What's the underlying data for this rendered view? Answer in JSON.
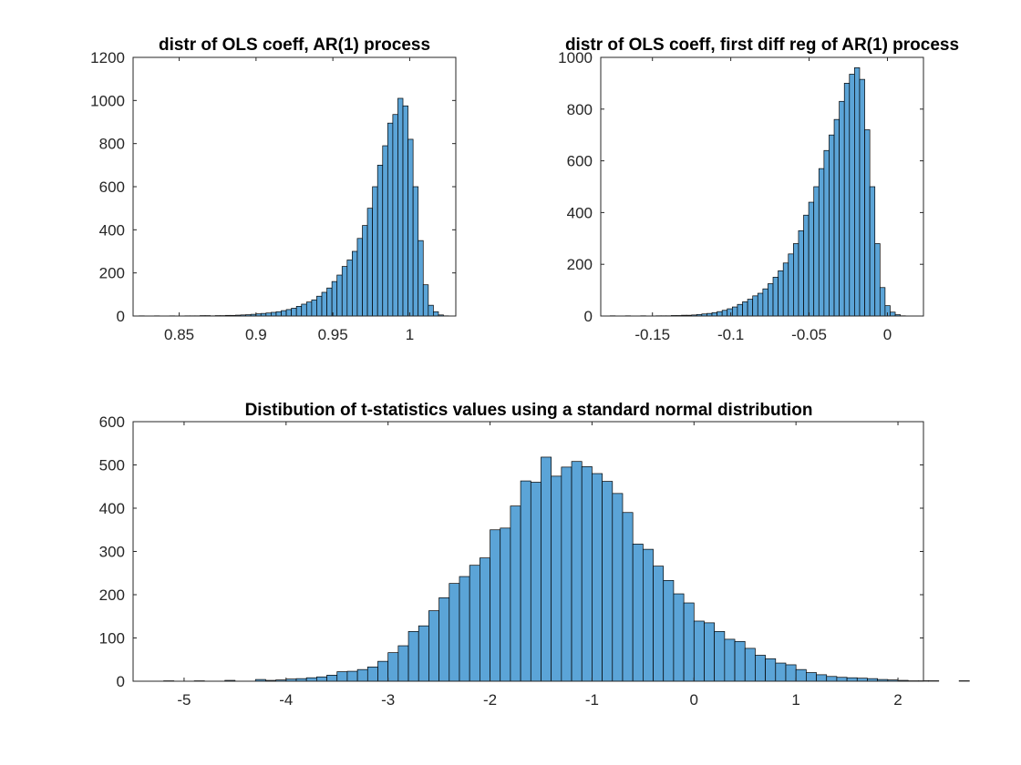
{
  "colors": {
    "bar_fill": "#5ba4d7",
    "bar_edge": "#000000",
    "axis": "#262626",
    "background": "#ffffff"
  },
  "chart_data": [
    {
      "type": "bar",
      "title": "distr of OLS coeff, AR(1) process",
      "xlabel": "",
      "ylabel": "",
      "xlim": [
        0.82,
        1.03
      ],
      "ylim": [
        0,
        1200
      ],
      "xticks": [
        0.85,
        0.9,
        0.95,
        1
      ],
      "xtick_labels": [
        "0.85",
        "0.9",
        "0.95",
        "1"
      ],
      "yticks": [
        0,
        200,
        400,
        600,
        800,
        1000,
        1200
      ],
      "ytick_labels": [
        "0",
        "200",
        "400",
        "600",
        "800",
        "1000",
        "1200"
      ],
      "bin_start": 0.824,
      "bin_width": 0.0033,
      "values": [
        1,
        0,
        0,
        1,
        0,
        0,
        1,
        0,
        0,
        1,
        1,
        1,
        2,
        2,
        1,
        2,
        2,
        3,
        3,
        4,
        5,
        6,
        8,
        10,
        12,
        14,
        17,
        20,
        25,
        30,
        36,
        45,
        55,
        65,
        75,
        92,
        110,
        130,
        160,
        190,
        230,
        260,
        300,
        360,
        420,
        500,
        600,
        700,
        790,
        895,
        935,
        1010,
        975,
        820,
        600,
        350,
        145,
        50,
        20,
        5,
        1
      ]
    },
    {
      "type": "bar",
      "title": "distr of OLS coeff, first diff reg of AR(1) process",
      "xlabel": "",
      "ylabel": "",
      "xlim": [
        -0.183,
        0.023
      ],
      "ylim": [
        0,
        1000
      ],
      "xticks": [
        -0.15,
        -0.1,
        -0.05,
        0
      ],
      "xtick_labels": [
        "-0.15",
        "-0.1",
        "-0.05",
        "0"
      ],
      "yticks": [
        0,
        200,
        400,
        600,
        800,
        1000
      ],
      "ytick_labels": [
        "0",
        "200",
        "400",
        "600",
        "800",
        "1000"
      ],
      "bin_start": -0.177,
      "bin_width": 0.00325,
      "values": [
        1,
        0,
        0,
        1,
        0,
        0,
        1,
        0,
        0,
        1,
        1,
        1,
        2,
        2,
        3,
        3,
        4,
        6,
        8,
        10,
        13,
        17,
        22,
        28,
        35,
        45,
        55,
        65,
        78,
        88,
        105,
        125,
        150,
        175,
        205,
        240,
        280,
        330,
        390,
        440,
        500,
        570,
        640,
        700,
        760,
        830,
        900,
        935,
        960,
        915,
        720,
        500,
        280,
        110,
        40,
        15,
        5,
        1
      ]
    },
    {
      "type": "bar",
      "title": "Distibution of t-statistics values using a standard normal distribution",
      "xlabel": "",
      "ylabel": "",
      "xlim": [
        -5.5,
        2.25
      ],
      "ylim": [
        0,
        600
      ],
      "xticks": [
        -5,
        -4,
        -3,
        -2,
        -1,
        0,
        1,
        2
      ],
      "xtick_labels": [
        "-5",
        "-4",
        "-3",
        "-2",
        "-1",
        "0",
        "1",
        "2"
      ],
      "yticks": [
        0,
        100,
        200,
        300,
        400,
        500,
        600
      ],
      "ytick_labels": [
        "0",
        "100",
        "200",
        "300",
        "400",
        "500",
        "600"
      ],
      "bin_start": -5.2,
      "bin_width": 0.1,
      "values": [
        1,
        0,
        0,
        1,
        0,
        0,
        2,
        0,
        0,
        4,
        2,
        3,
        5,
        6,
        8,
        10,
        14,
        22,
        23,
        27,
        33,
        46,
        66,
        82,
        115,
        128,
        163,
        193,
        226,
        242,
        268,
        285,
        350,
        354,
        405,
        463,
        460,
        518,
        474,
        495,
        508,
        496,
        480,
        462,
        434,
        390,
        317,
        305,
        266,
        233,
        202,
        181,
        139,
        135,
        115,
        97,
        92,
        76,
        60,
        52,
        42,
        38,
        27,
        20,
        15,
        11,
        9,
        8,
        7,
        6,
        4,
        3,
        2,
        1,
        1,
        1,
        0,
        0,
        1
      ]
    }
  ]
}
